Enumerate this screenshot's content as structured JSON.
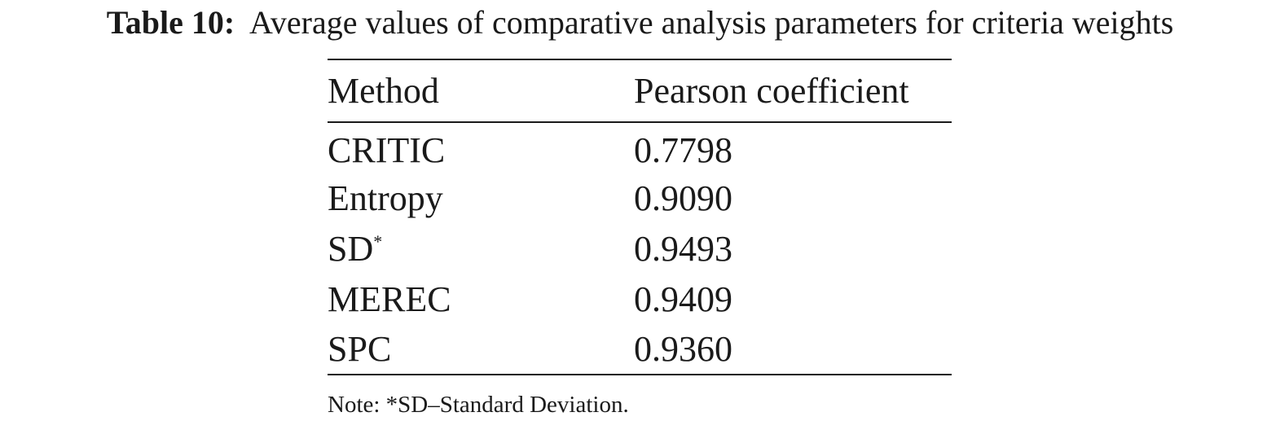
{
  "caption": {
    "label": "Table 10:",
    "text": "Average values of comparative analysis parameters for criteria weights"
  },
  "table": {
    "headers": [
      "Method",
      "Pearson coefficient"
    ],
    "rows": [
      {
        "method": "CRITIC",
        "marker": "",
        "value": "0.7798"
      },
      {
        "method": "Entropy",
        "marker": "",
        "value": "0.9090"
      },
      {
        "method": "SD",
        "marker": "*",
        "value": "0.9493"
      },
      {
        "method": "MEREC",
        "marker": "",
        "value": "0.9409"
      },
      {
        "method": "SPC",
        "marker": "",
        "value": "0.9360"
      }
    ]
  },
  "note": "Note: *SD–Standard Deviation."
}
